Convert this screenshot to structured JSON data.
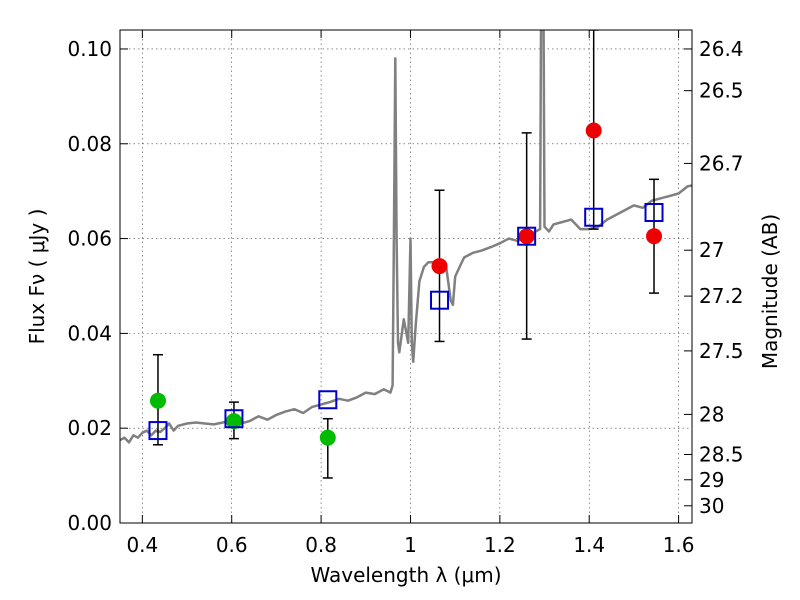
{
  "chart_data": {
    "type": "scatter",
    "title": "",
    "xlabel": "Wavelength  λ (μm)",
    "ylabel": "Flux  Fν  ( μJy )",
    "y2label": "Magnitude (AB)",
    "xlim": [
      0.35,
      1.63
    ],
    "ylim": [
      0.0,
      0.104
    ],
    "grid": true,
    "x_ticks": [
      0.4,
      0.6,
      0.8,
      1.0,
      1.2,
      1.4,
      1.6
    ],
    "x_tick_labels": [
      "0.4",
      "0.6",
      "0.8",
      "1",
      "1.2",
      "1.4",
      "1.6"
    ],
    "y_ticks": [
      0.0,
      0.02,
      0.04,
      0.06,
      0.08,
      0.1
    ],
    "y_tick_labels": [
      "0.00",
      "0.02",
      "0.04",
      "0.06",
      "0.08",
      "0.10"
    ],
    "y2_tick_labels": [
      "26.4",
      "26.5",
      "26.7",
      "27",
      "27.2",
      "27.5",
      "28",
      "28.5",
      "29",
      "30"
    ],
    "y2_tick_values": [
      26.4,
      26.5,
      26.7,
      27.0,
      27.2,
      27.5,
      28.0,
      28.5,
      29.0,
      30.0
    ],
    "colors": {
      "spectrum": "#808080",
      "green": "#00bb00",
      "red": "#ee0000",
      "model": "#0000cc",
      "error": "#000000"
    },
    "series": [
      {
        "kind": "spectrum",
        "x": [
          0.35,
          0.36,
          0.37,
          0.38,
          0.39,
          0.4,
          0.41,
          0.42,
          0.43,
          0.44,
          0.45,
          0.46,
          0.47,
          0.48,
          0.5,
          0.52,
          0.54,
          0.56,
          0.58,
          0.6,
          0.62,
          0.64,
          0.66,
          0.68,
          0.7,
          0.72,
          0.74,
          0.76,
          0.78,
          0.8,
          0.82,
          0.84,
          0.86,
          0.88,
          0.9,
          0.92,
          0.94,
          0.955,
          0.96,
          0.963,
          0.966,
          0.969,
          0.972,
          0.975,
          0.985,
          0.995,
          1.0,
          1.003,
          1.006,
          1.012,
          1.02,
          1.03,
          1.04,
          1.06,
          1.08,
          1.09,
          1.095,
          1.1,
          1.11,
          1.12,
          1.14,
          1.16,
          1.18,
          1.2,
          1.22,
          1.24,
          1.26,
          1.28,
          1.29,
          1.292,
          1.295,
          1.298,
          1.3,
          1.31,
          1.32,
          1.34,
          1.36,
          1.38,
          1.4,
          1.42,
          1.44,
          1.46,
          1.48,
          1.5,
          1.52,
          1.54,
          1.56,
          1.58,
          1.6,
          1.62,
          1.63
        ],
        "y": [
          0.0175,
          0.018,
          0.017,
          0.0185,
          0.018,
          0.019,
          0.0195,
          0.0185,
          0.0195,
          0.0192,
          0.02,
          0.021,
          0.0195,
          0.0205,
          0.021,
          0.0212,
          0.021,
          0.0208,
          0.0212,
          0.0215,
          0.021,
          0.0215,
          0.0225,
          0.0218,
          0.0228,
          0.0235,
          0.024,
          0.0232,
          0.0245,
          0.025,
          0.0255,
          0.0262,
          0.0258,
          0.0265,
          0.0275,
          0.0272,
          0.0282,
          0.0275,
          0.029,
          0.06,
          0.098,
          0.06,
          0.038,
          0.036,
          0.043,
          0.038,
          0.06,
          0.038,
          0.034,
          0.042,
          0.051,
          0.054,
          0.055,
          0.055,
          0.054,
          0.047,
          0.046,
          0.052,
          0.054,
          0.056,
          0.057,
          0.0575,
          0.0582,
          0.059,
          0.06,
          0.0595,
          0.0605,
          0.0615,
          0.062,
          0.104,
          0.104,
          0.104,
          0.0625,
          0.0615,
          0.063,
          0.0635,
          0.064,
          0.062,
          0.062,
          0.0625,
          0.064,
          0.065,
          0.066,
          0.067,
          0.0665,
          0.068,
          0.0685,
          0.069,
          0.0695,
          0.071,
          0.0712
        ]
      },
      {
        "name": "",
        "kind": "points",
        "marker": "circle",
        "color_key": "green",
        "x": [
          0.435,
          0.605,
          0.815
        ],
        "y": [
          0.0258,
          0.0215,
          0.018
        ],
        "err_low": [
          0.0165,
          0.0178,
          0.0095
        ],
        "err_high": [
          0.0355,
          0.0255,
          0.022
        ]
      },
      {
        "name": "",
        "kind": "points",
        "marker": "circle",
        "color_key": "red",
        "x": [
          1.065,
          1.26,
          1.41,
          1.545
        ],
        "y": [
          0.0542,
          0.0605,
          0.0828,
          0.0605
        ],
        "err_low": [
          0.0383,
          0.0388,
          0.062,
          0.0485
        ],
        "err_high": [
          0.0702,
          0.0823,
          0.104,
          0.0725
        ]
      },
      {
        "name": "",
        "kind": "points",
        "marker": "open-square",
        "color_key": "model",
        "x": [
          0.435,
          0.605,
          0.815,
          1.065,
          1.26,
          1.41,
          1.545
        ],
        "y": [
          0.0195,
          0.022,
          0.026,
          0.047,
          0.0605,
          0.0645,
          0.0655
        ]
      }
    ]
  }
}
